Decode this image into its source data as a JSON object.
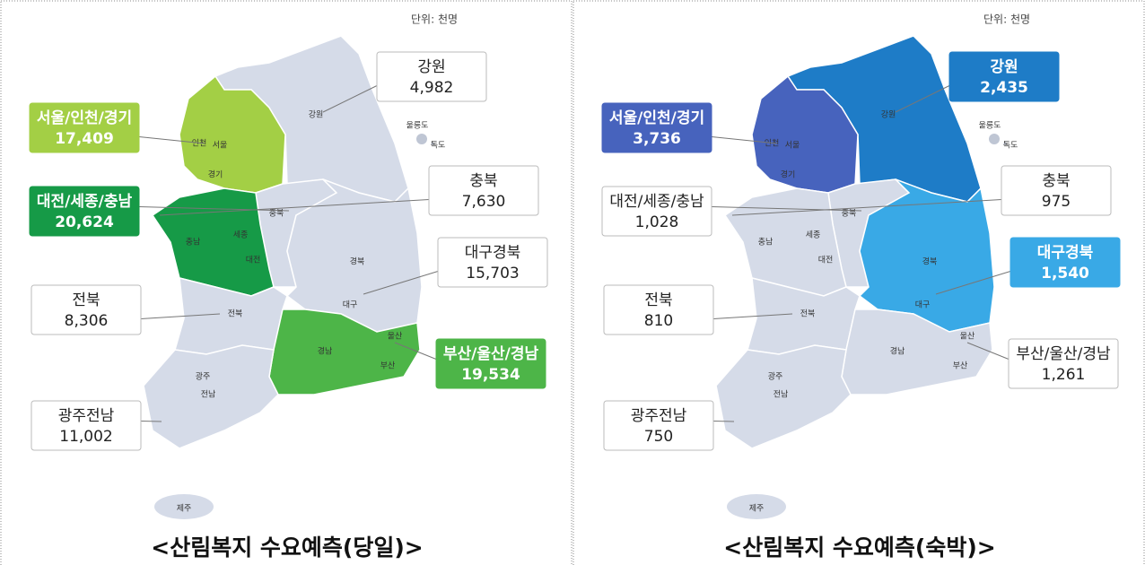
{
  "maps": [
    {
      "unit": "단위: 천명",
      "title": "<산림복지 수요예측(당일)>",
      "regions": [
        {
          "name": "강원",
          "value": "4,982",
          "color": "#d5dbe8",
          "highlight": false
        },
        {
          "name": "서울/인천/경기",
          "value": "17,409",
          "color": "#a3cf45",
          "highlight": true
        },
        {
          "name": "충북",
          "value": "7,630",
          "color": "#d5dbe8",
          "highlight": false
        },
        {
          "name": "대전/세종/충남",
          "value": "20,624",
          "color": "#169a47",
          "highlight": true
        },
        {
          "name": "대구경북",
          "value": "15,703",
          "color": "#d5dbe8",
          "highlight": false
        },
        {
          "name": "전북",
          "value": "8,306",
          "color": "#d5dbe8",
          "highlight": false
        },
        {
          "name": "부산/울산/경남",
          "value": "19,534",
          "color": "#4db548",
          "highlight": true
        },
        {
          "name": "광주전남",
          "value": "11,002",
          "color": "#d5dbe8",
          "highlight": false
        }
      ],
      "labels": [
        "강원",
        "경기",
        "서울",
        "인천",
        "충북",
        "충남",
        "세종",
        "대전",
        "경북",
        "대구",
        "전북",
        "경남",
        "울산",
        "부산",
        "광주",
        "전남",
        "제주",
        "울릉도",
        "독도"
      ]
    },
    {
      "unit": "단위: 천명",
      "title": "<산림복지 수요예측(숙박)>",
      "regions": [
        {
          "name": "강원",
          "value": "2,435",
          "color": "#1e7cc7",
          "highlight": true
        },
        {
          "name": "서울/인천/경기",
          "value": "3,736",
          "color": "#4763bd",
          "highlight": true
        },
        {
          "name": "충북",
          "value": "975",
          "color": "#d5dbe8",
          "highlight": false
        },
        {
          "name": "대전/세종/충남",
          "value": "1,028",
          "color": "#d5dbe8",
          "highlight": false
        },
        {
          "name": "대구경북",
          "value": "1,540",
          "color": "#39a9e6",
          "highlight": true
        },
        {
          "name": "전북",
          "value": "810",
          "color": "#d5dbe8",
          "highlight": false
        },
        {
          "name": "부산/울산/경남",
          "value": "1,261",
          "color": "#d5dbe8",
          "highlight": false
        },
        {
          "name": "광주전남",
          "value": "750",
          "color": "#d5dbe8",
          "highlight": false
        }
      ],
      "labels": [
        "강원",
        "경기",
        "서울",
        "인천",
        "충북",
        "충남",
        "세종",
        "대전",
        "경북",
        "대구",
        "전북",
        "경남",
        "울산",
        "부산",
        "광주",
        "전남",
        "제주",
        "울릉도",
        "독도"
      ]
    }
  ]
}
